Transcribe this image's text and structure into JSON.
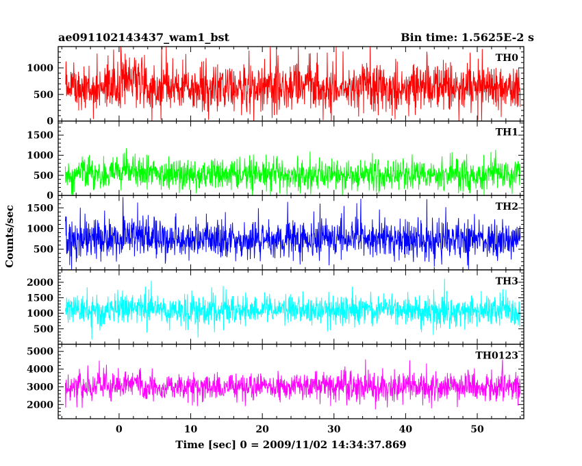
{
  "header": {
    "title_left": "ae091102143437_wam1_bst",
    "title_right": "Bin time: 1.5625E-2 s"
  },
  "chart_data": {
    "type": "line",
    "ylabel": "Counts/sec",
    "xlabel": "Time [sec] 0 = 2009/11/02 14:34:37.869",
    "xlim": [
      -8.5,
      56.5
    ],
    "x_ticks": [
      0,
      10,
      20,
      30,
      40,
      50
    ],
    "x_tick_labels": [
      "0",
      "10",
      "20",
      "30",
      "40",
      "50"
    ],
    "data_x_range": [
      -7.5,
      56.0
    ],
    "panels": [
      {
        "name": "TH0",
        "color": "#ff0000",
        "ylim": [
          0,
          1400
        ],
        "y_ticks": [
          0,
          500,
          1000
        ],
        "y_tick_labels": [
          "0",
          "500",
          "1000"
        ],
        "baseline": 630,
        "spread": 380,
        "peak_max": 1400,
        "floor_min": 0
      },
      {
        "name": "TH1",
        "color": "#00ff00",
        "ylim": [
          0,
          1850
        ],
        "y_ticks": [
          0,
          500,
          1000,
          1500
        ],
        "y_tick_labels": [
          "0",
          "500",
          "1000",
          "1500"
        ],
        "baseline": 520,
        "spread": 330,
        "peak_max": 1800,
        "floor_min": 0
      },
      {
        "name": "TH2",
        "color": "#0000ff",
        "ylim": [
          0,
          1800
        ],
        "y_ticks": [
          500,
          1000,
          1500
        ],
        "y_tick_labels": [
          "500",
          "1000",
          "1500"
        ],
        "baseline": 730,
        "spread": 400,
        "peak_max": 1800,
        "floor_min": 0
      },
      {
        "name": "TH3",
        "color": "#00ffff",
        "ylim": [
          0,
          2400
        ],
        "y_ticks": [
          500,
          1000,
          1500,
          2000
        ],
        "y_tick_labels": [
          "500",
          "1000",
          "1500",
          "2000"
        ],
        "baseline": 1100,
        "spread": 420,
        "peak_max": 2350,
        "floor_min": 0
      },
      {
        "name": "TH0123",
        "color": "#ff00ff",
        "ylim": [
          1200,
          5400
        ],
        "y_ticks": [
          2000,
          3000,
          4000,
          5000
        ],
        "y_tick_labels": [
          "2000",
          "3000",
          "4000",
          "5000"
        ],
        "baseline": 3000,
        "spread": 650,
        "peak_max": 5300,
        "floor_min": 1200
      }
    ]
  }
}
